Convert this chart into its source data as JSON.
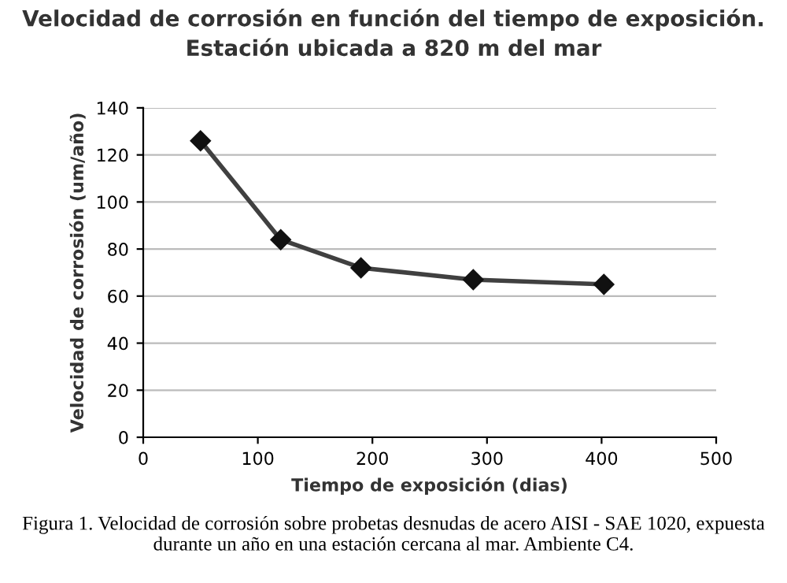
{
  "chart_data": {
    "type": "line",
    "title": "Velocidad de corrosión en función del tiempo de exposición.\nEstación ubicada a 820 m del mar",
    "xlabel": "Tiempo de exposición (dias)",
    "ylabel": "Velocidad de corrosión (um/año)",
    "x": [
      50,
      120,
      190,
      288,
      402
    ],
    "series": [
      {
        "color": "#404040",
        "values": [
          126,
          84,
          72,
          67,
          65
        ]
      }
    ],
    "xlim": [
      0,
      500
    ],
    "xticks": [
      0,
      100,
      200,
      300,
      400,
      500
    ],
    "ylim": [
      0,
      140
    ],
    "yticks": [
      0,
      20,
      40,
      60,
      80,
      100,
      120,
      140
    ],
    "grid": "y",
    "marker": "diamond",
    "line_style": "solid",
    "legend": false,
    "annotations": [
      "Figura 1. Velocidad de corrosión sobre probetas desnudas de acero AISI - SAE 1020, expuesta durante un año en una estación cercana al mar. Ambiente C4."
    ]
  }
}
